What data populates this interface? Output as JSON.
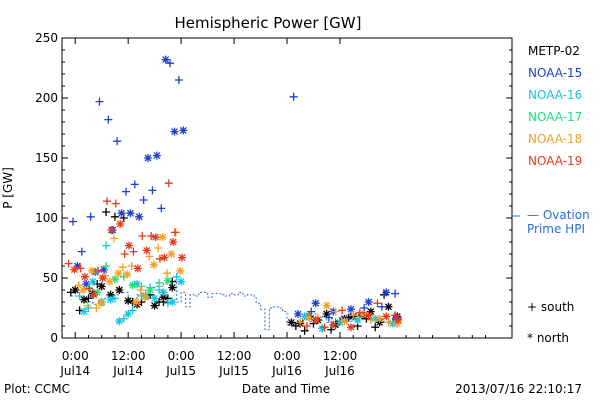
{
  "chart_data": {
    "type": "scatter",
    "title": "Hemispheric Power [GW]",
    "xlabel": "Date and Time",
    "ylabel": "P [GW]",
    "ylim": [
      0,
      250
    ],
    "xlim": [
      -3,
      99
    ],
    "x_unit": "hours since 2013-07-14 00:00",
    "y_ticks": [
      0,
      50,
      100,
      150,
      200,
      250
    ],
    "x_ticks": [
      {
        "x": 0,
        "time": "0:00",
        "date": "Jul14"
      },
      {
        "x": 12,
        "time": "12:00",
        "date": "Jul14"
      },
      {
        "x": 24,
        "time": "0:00",
        "date": "Jul15"
      },
      {
        "x": 36,
        "time": "12:00",
        "date": "Jul15"
      },
      {
        "x": 48,
        "time": "0:00",
        "date": "Jul16"
      },
      {
        "x": 60,
        "time": "12:00",
        "date": "Jul16"
      }
    ],
    "legend": {
      "satellites": [
        {
          "name": "METP-02",
          "color": "#000000"
        },
        {
          "name": "NOAA-15",
          "color": "#1f3fd0"
        },
        {
          "name": "NOAA-16",
          "color": "#16c6e0"
        },
        {
          "name": "NOAA-17",
          "color": "#22e07a"
        },
        {
          "name": "NOAA-18",
          "color": "#f4a020"
        },
        {
          "name": "NOAA-19",
          "color": "#e63a1e"
        }
      ],
      "ovation_label_1": "— Ovation",
      "ovation_label_2": "Prime HPI",
      "ovation_color": "#2a6fd6",
      "south_label": "+ south",
      "north_label": "* north"
    },
    "ovation": {
      "name": "Ovation Prime HPI",
      "x": [
        -1,
        2,
        4,
        6,
        8,
        10,
        12,
        14,
        16,
        18,
        20,
        22,
        23,
        24,
        25,
        26,
        27,
        28,
        29,
        30,
        31,
        32,
        33,
        34,
        35,
        36,
        37,
        38,
        39,
        40,
        41,
        42,
        43,
        44,
        45,
        46,
        47,
        48,
        49,
        50,
        51,
        52,
        53,
        54,
        55,
        56,
        57,
        58,
        59,
        60,
        61,
        62,
        63,
        64,
        65,
        66,
        67,
        68,
        69,
        70,
        71,
        72,
        73,
        74
      ],
      "y": [
        35,
        30,
        28,
        33,
        36,
        38,
        33,
        36,
        40,
        43,
        45,
        48,
        30,
        38,
        26,
        36,
        35,
        38,
        38,
        34,
        37,
        37,
        36,
        35,
        37,
        36,
        38,
        35,
        36,
        35,
        29,
        24,
        7,
        25,
        26,
        25,
        22,
        11,
        12,
        13,
        15,
        18,
        14,
        20,
        15,
        18,
        13,
        16,
        12,
        15,
        18,
        14,
        16,
        17,
        16,
        16,
        15,
        15,
        14,
        13,
        14,
        17,
        16,
        15
      ]
    },
    "series": [
      {
        "name": "METP-02",
        "hemisphere": "south",
        "color": "#000000",
        "x": [
          -1,
          1,
          3,
          5,
          7,
          9,
          11,
          13,
          15,
          17,
          19,
          20,
          21,
          22,
          50,
          52,
          54,
          56,
          58,
          60,
          62,
          64,
          66,
          68,
          70,
          72
        ],
        "y": [
          38,
          23,
          33,
          45,
          105,
          101,
          100,
          30,
          30,
          36,
          30,
          30,
          33,
          47,
          10,
          6,
          12,
          8,
          7,
          14,
          17,
          10,
          16,
          9,
          36,
          13
        ]
      },
      {
        "name": "METP-02",
        "hemisphere": "north",
        "color": "#000000",
        "x": [
          0,
          2,
          4,
          6,
          8,
          10,
          12,
          14,
          16,
          18,
          20,
          22,
          49,
          51,
          53,
          55,
          57,
          59,
          61,
          63,
          65,
          67,
          69,
          71,
          73
        ],
        "y": [
          40,
          32,
          37,
          43,
          36,
          40,
          31,
          28,
          35,
          27,
          34,
          42,
          13,
          12,
          18,
          15,
          20,
          11,
          16,
          18,
          19,
          22,
          13,
          26,
          18
        ]
      },
      {
        "name": "NOAA-15",
        "hemisphere": "south",
        "color": "#1f3fd0",
        "x": [
          -0.5,
          1.5,
          3.5,
          5.5,
          7.5,
          9.5,
          11.5,
          13.5,
          15.5,
          17.5,
          19.5,
          21.5,
          23.5,
          49.5,
          53.5,
          57.5,
          61.5,
          65.5,
          69.5,
          72.5
        ],
        "y": [
          97,
          72,
          101,
          197,
          182,
          164,
          122,
          128,
          115,
          123,
          108,
          229,
          215,
          201,
          22,
          17,
          16,
          25,
          26,
          37
        ]
      },
      {
        "name": "NOAA-15",
        "hemisphere": "north",
        "color": "#1f3fd0",
        "x": [
          0.5,
          2.5,
          4.5,
          6.5,
          8.5,
          10.5,
          12.5,
          14.5,
          16.5,
          18.5,
          20.5,
          22.5,
          24.5,
          50.5,
          54.5,
          58.5,
          62.5,
          66.5,
          70.5,
          72.8
        ],
        "y": [
          60,
          45,
          55,
          57,
          90,
          104,
          104,
          101,
          150,
          152,
          232,
          172,
          173,
          20,
          29,
          22,
          24,
          30,
          38,
          17
        ]
      },
      {
        "name": "NOAA-16",
        "hemisphere": "south",
        "color": "#16c6e0",
        "x": [
          1,
          3,
          5,
          7,
          9,
          11,
          13,
          15,
          17,
          19,
          21,
          23
        ],
        "y": [
          35,
          25,
          55,
          77,
          33,
          16,
          23,
          35,
          42,
          40,
          29,
          51
        ]
      },
      {
        "name": "NOAA-16",
        "hemisphere": "north",
        "color": "#16c6e0",
        "x": [
          2,
          4,
          6,
          8,
          10,
          12,
          14,
          16,
          18,
          20,
          22,
          24,
          52,
          56,
          60,
          64,
          68,
          72
        ],
        "y": [
          22,
          47,
          30,
          32,
          14,
          20,
          45,
          35,
          33,
          38,
          30,
          47,
          18,
          8,
          13,
          15,
          16,
          12
        ]
      },
      {
        "name": "NOAA-17",
        "hemisphere": "south",
        "color": "#22e07a",
        "x": [
          3,
          7,
          11,
          15,
          19
        ],
        "y": [
          42,
          60,
          51,
          43,
          46
        ]
      },
      {
        "name": "NOAA-17",
        "hemisphere": "north",
        "color": "#22e07a",
        "x": [
          5,
          9,
          13,
          17,
          21
        ],
        "y": [
          38,
          49,
          44,
          40,
          48
        ]
      },
      {
        "name": "NOAA-18",
        "hemisphere": "south",
        "color": "#f4a020",
        "x": [
          0.8,
          2.8,
          4.8,
          6.8,
          8.8,
          10.8,
          12.8,
          14.8,
          16.8,
          18.8,
          20.8,
          22.8,
          51,
          55,
          59,
          63,
          67,
          71
        ],
        "y": [
          44,
          27,
          25,
          52,
          83,
          59,
          60,
          40,
          68,
          75,
          54,
          88,
          13,
          17,
          22,
          19,
          15,
          13
        ]
      },
      {
        "name": "NOAA-18",
        "hemisphere": "north",
        "color": "#f4a020",
        "x": [
          1.8,
          3.8,
          5.8,
          7.8,
          9.8,
          11.8,
          13.8,
          15.8,
          17.8,
          19.8,
          21.8,
          23.8,
          53,
          57,
          61,
          65,
          69,
          73
        ],
        "y": [
          40,
          56,
          29,
          47,
          54,
          53,
          30,
          34,
          61,
          84,
          70,
          56,
          17,
          27,
          14,
          20,
          16,
          12
        ]
      },
      {
        "name": "NOAA-19",
        "hemisphere": "south",
        "color": "#e63a1e",
        "x": [
          -1.5,
          1.2,
          3.2,
          5.2,
          7.2,
          9.2,
          11.2,
          13.2,
          15.2,
          17.2,
          19.2,
          21.2,
          22.6,
          52.5,
          56.5,
          60.5,
          64.5,
          68.5,
          72.5
        ],
        "y": [
          62,
          58,
          41,
          56,
          114,
          112,
          70,
          72,
          85,
          85,
          66,
          129,
          88,
          10,
          9,
          23,
          21,
          29,
          19
        ]
      },
      {
        "name": "NOAA-19",
        "hemisphere": "north",
        "color": "#e63a1e",
        "x": [
          -0.2,
          2.2,
          4.2,
          6.2,
          8.2,
          10.2,
          12.2,
          14.2,
          16.2,
          18.2,
          20.2,
          22.2,
          24.2,
          54.5,
          58.5,
          62.5,
          66.5,
          70.5,
          73.2
        ],
        "y": [
          57,
          51,
          36,
          50,
          90,
          95,
          77,
          58,
          73,
          84,
          67,
          80,
          67,
          15,
          11,
          9,
          19,
          18,
          15
        ]
      }
    ]
  },
  "footer": {
    "plot_credit": "Plot: CCMC",
    "timestamp": "2013/07/16 22:10:17"
  }
}
